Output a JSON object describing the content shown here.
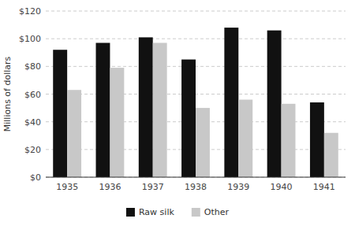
{
  "chart_data": {
    "type": "bar",
    "categories": [
      "1935",
      "1936",
      "1937",
      "1938",
      "1939",
      "1940",
      "1941"
    ],
    "series": [
      {
        "name": "Raw silk",
        "color": "#111111",
        "values": [
          92,
          97,
          101,
          85,
          108,
          106,
          54
        ]
      },
      {
        "name": "Other",
        "color": "#c8c8c8",
        "values": [
          63,
          79,
          97,
          50,
          56,
          53,
          32
        ]
      }
    ],
    "ylabel": "Millions of dollars",
    "ylim": [
      0,
      120
    ],
    "yticks": [
      {
        "value": 0,
        "label": "$0"
      },
      {
        "value": 20,
        "label": "$20"
      },
      {
        "value": 40,
        "label": "$40"
      },
      {
        "value": 60,
        "label": "$60"
      },
      {
        "value": 80,
        "label": "$80"
      },
      {
        "value": 100,
        "label": "$100"
      },
      {
        "value": 120,
        "label": "$120"
      }
    ],
    "grid": true,
    "legend": "bottom"
  }
}
